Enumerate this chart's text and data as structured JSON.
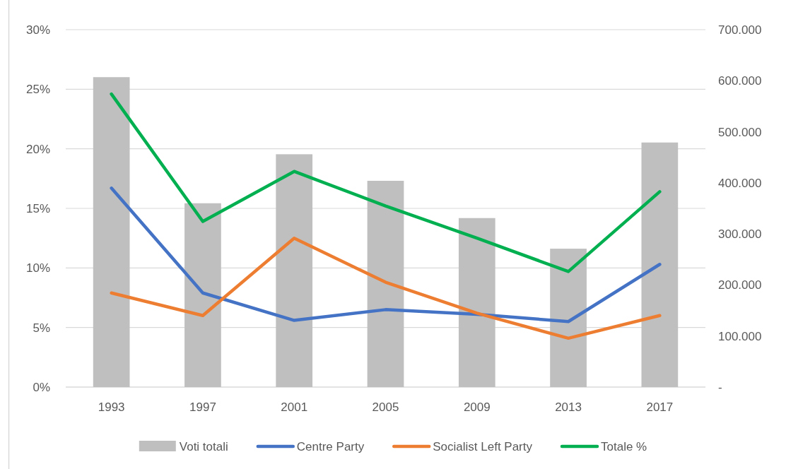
{
  "chart_data": {
    "type": "bar",
    "categories": [
      "1993",
      "1997",
      "2001",
      "2005",
      "2009",
      "2013",
      "2017"
    ],
    "series": [
      {
        "name": "Voti totali",
        "axis": "y2",
        "color": "#bfbfbf",
        "values": [
          607000,
          360000,
          456000,
          404000,
          331000,
          271000,
          479000
        ]
      },
      {
        "name": "Centre Party",
        "type": "line",
        "color": "#4472c4",
        "values": [
          16.7,
          7.9,
          5.6,
          6.5,
          6.1,
          5.5,
          10.3
        ]
      },
      {
        "name": "Socialist Left Party",
        "type": "line",
        "color": "#ed7d31",
        "values": [
          7.9,
          6.0,
          12.5,
          8.8,
          6.2,
          4.1,
          6.0
        ]
      },
      {
        "name": "Totale %",
        "type": "line",
        "color": "#00b050",
        "values": [
          24.6,
          13.9,
          18.1,
          15.2,
          12.5,
          9.7,
          16.4
        ]
      }
    ],
    "ylim": [
      0,
      30
    ],
    "yticks": [
      {
        "value": 0,
        "label": "0%"
      },
      {
        "value": 5,
        "label": "5%"
      },
      {
        "value": 10,
        "label": "10%"
      },
      {
        "value": 15,
        "label": "15%"
      },
      {
        "value": 20,
        "label": "20%"
      },
      {
        "value": 25,
        "label": "25%"
      },
      {
        "value": 30,
        "label": "30%"
      }
    ],
    "y2lim": [
      0,
      700000
    ],
    "y2ticks": [
      {
        "value": 0,
        "label": "-"
      },
      {
        "value": 100000,
        "label": "100.000"
      },
      {
        "value": 200000,
        "label": "200.000"
      },
      {
        "value": 300000,
        "label": "300.000"
      },
      {
        "value": 400000,
        "label": "400.000"
      },
      {
        "value": 500000,
        "label": "500.000"
      },
      {
        "value": 600000,
        "label": "600.000"
      },
      {
        "value": 700000,
        "label": "700.000"
      }
    ],
    "grid": "y",
    "legend": "bottom"
  }
}
